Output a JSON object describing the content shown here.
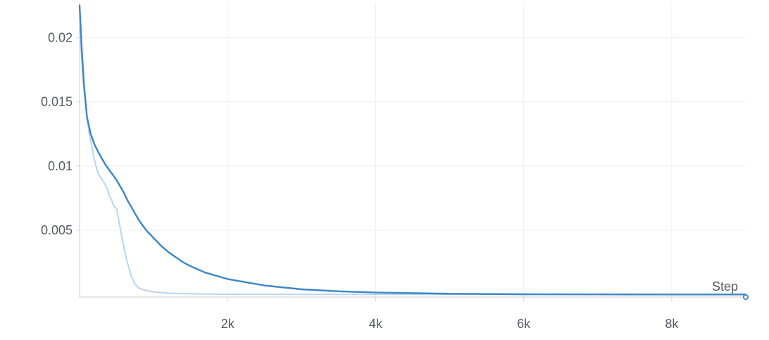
{
  "chart_data": {
    "type": "line",
    "title": "",
    "xlabel": "Step",
    "ylabel": "",
    "xlim": [
      0,
      9000
    ],
    "ylim": [
      -0.0002,
      0.0227
    ],
    "xticks": [
      2000,
      4000,
      6000,
      8000
    ],
    "xtick_labels": [
      "2k",
      "4k",
      "6k",
      "8k"
    ],
    "yticks": [
      0.005,
      0.01,
      0.015,
      0.02
    ],
    "ytick_labels": [
      "0.005",
      "0.01",
      "0.015",
      "0.02"
    ],
    "grid": true,
    "colors": {
      "smoothed": "#3d86c6",
      "raw": "#b9d5ee",
      "grid": "#eef0f2",
      "axis": "#d2d6da"
    },
    "series": [
      {
        "x": [
          0,
          30,
          60,
          100,
          150,
          200,
          250,
          300,
          350,
          400,
          450,
          500,
          550,
          600,
          650,
          700,
          750,
          800,
          900,
          1000,
          1100,
          1200,
          1300,
          1400,
          1500,
          1700,
          2000,
          2500,
          3000,
          3500,
          4000,
          5000,
          6000,
          7000,
          8000,
          9000
        ],
        "values": [
          0.0225,
          0.019,
          0.0163,
          0.0138,
          0.0125,
          0.0117,
          0.0111,
          0.0106,
          0.0101,
          0.0097,
          0.0093,
          0.0089,
          0.0084,
          0.0079,
          0.0073,
          0.0068,
          0.0063,
          0.0058,
          0.005,
          0.0044,
          0.0038,
          0.0033,
          0.0029,
          0.0025,
          0.0022,
          0.0017,
          0.0012,
          0.0007,
          0.0004,
          0.00025,
          0.00015,
          6e-05,
          2e-05,
          1e-05,
          5e-06,
          0.0
        ]
      },
      {
        "x": [
          0,
          20,
          50,
          80,
          100,
          130,
          160,
          200,
          230,
          260,
          300,
          330,
          350,
          380,
          400,
          430,
          460,
          500,
          530,
          560,
          600,
          650,
          700,
          750,
          800,
          900,
          1000,
          1100,
          1200,
          1500,
          2000,
          3000,
          4000,
          6000,
          8000,
          9000
        ],
        "values": [
          0.0205,
          0.019,
          0.0165,
          0.0148,
          0.0138,
          0.0125,
          0.0117,
          0.0105,
          0.0098,
          0.0093,
          0.009,
          0.0087,
          0.0085,
          0.0082,
          0.0077,
          0.0074,
          0.0069,
          0.0067,
          0.0058,
          0.0048,
          0.0036,
          0.0024,
          0.0014,
          0.0008,
          0.0005,
          0.0003,
          0.0002,
          0.00015,
          0.0001,
          5e-05,
          2e-05,
          1e-05,
          0.0,
          0.0,
          0.0,
          0.0
        ]
      }
    ]
  }
}
